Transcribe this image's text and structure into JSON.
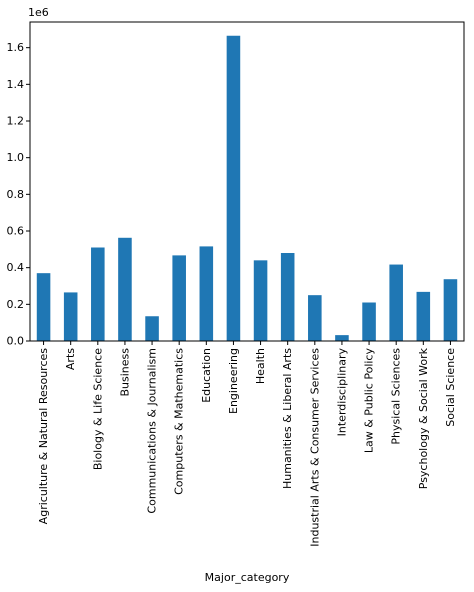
{
  "chart_data": {
    "type": "bar",
    "categories": [
      "Agriculture & Natural Resources",
      "Arts",
      "Biology & Life Science",
      "Business",
      "Communications & Journalism",
      "Computers & Mathematics",
      "Education",
      "Engineering",
      "Health",
      "Humanities & Liberal Arts",
      "Industrial Arts & Consumer Services",
      "Interdisciplinary",
      "Law & Public Policy",
      "Physical Sciences",
      "Psychology & Social Work",
      "Social Science"
    ],
    "values": [
      370000,
      265000,
      510000,
      563000,
      135000,
      467000,
      516000,
      1665000,
      440000,
      480000,
      250000,
      32000,
      210000,
      417000,
      268000,
      337000
    ],
    "title": "",
    "xlabel": "Major_category",
    "ylabel": "",
    "ylim": [
      0,
      1740000
    ],
    "yticks": [
      0,
      200000,
      400000,
      600000,
      800000,
      1000000,
      1200000,
      1400000,
      1600000
    ],
    "ytick_labels": [
      "0.0",
      "0.2",
      "0.4",
      "0.6",
      "0.8",
      "1.0",
      "1.2",
      "1.4",
      "1.6"
    ],
    "offset_label": "1e6",
    "bar_color": "#1f77b4",
    "grid": false,
    "legend": "none"
  }
}
